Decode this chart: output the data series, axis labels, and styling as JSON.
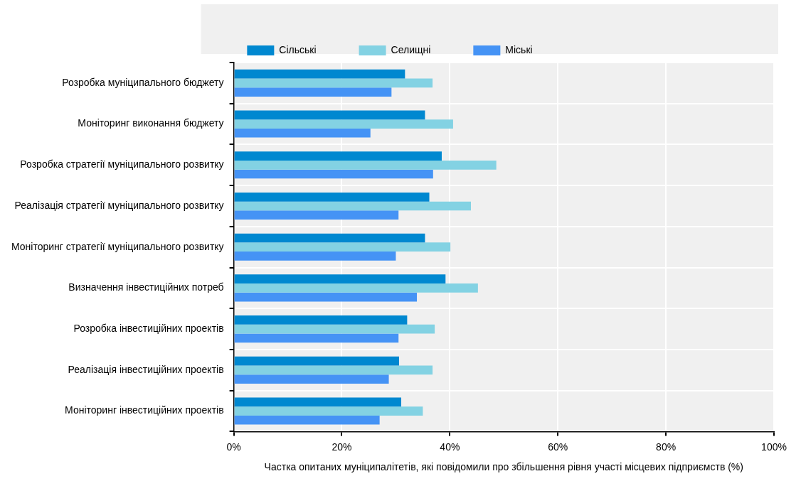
{
  "chart_data": {
    "type": "bar",
    "orientation": "horizontal",
    "xlabel": "Частка опитаних муніципалітетів, які повідомили про збільшення рівня участі місцевих підприємств (%)",
    "categories": [
      "Розробка муніципального бюджету",
      "Моніторинг виконання бюджету",
      "Розробка стратегії муніципального розвитку",
      "Реалізація стратегії муніципального розвитку",
      "Моніторинг стратегії муніципального розвитку",
      "Визначення інвестиційних потреб",
      "Розробка інвестиційних проектів",
      "Реалізація інвестиційних проектів",
      "Моніторинг інвестиційних проектів"
    ],
    "series": [
      {
        "name": "Сільські",
        "color": "#0088d0",
        "values": [
          31.7,
          35.4,
          38.5,
          36.2,
          35.4,
          39.2,
          32.1,
          30.6,
          31.0
        ]
      },
      {
        "name": "Селищні",
        "color": "#83d2e3",
        "values": [
          36.8,
          40.6,
          48.6,
          43.9,
          40.1,
          45.2,
          37.2,
          36.8,
          35.0
        ]
      },
      {
        "name": "Міські",
        "color": "#4593f5",
        "values": [
          29.2,
          25.3,
          36.9,
          30.5,
          30.0,
          33.9,
          30.5,
          28.7,
          27.0
        ]
      }
    ],
    "xlim": [
      0,
      100
    ],
    "xticks": [
      {
        "value": 0,
        "label": "0%"
      },
      {
        "value": 20,
        "label": "20%"
      },
      {
        "value": 40,
        "label": "40%"
      },
      {
        "value": 60,
        "label": "60%"
      },
      {
        "value": 80,
        "label": "80%"
      },
      {
        "value": 100,
        "label": "100%"
      }
    ],
    "grid": true,
    "legend": "top"
  }
}
